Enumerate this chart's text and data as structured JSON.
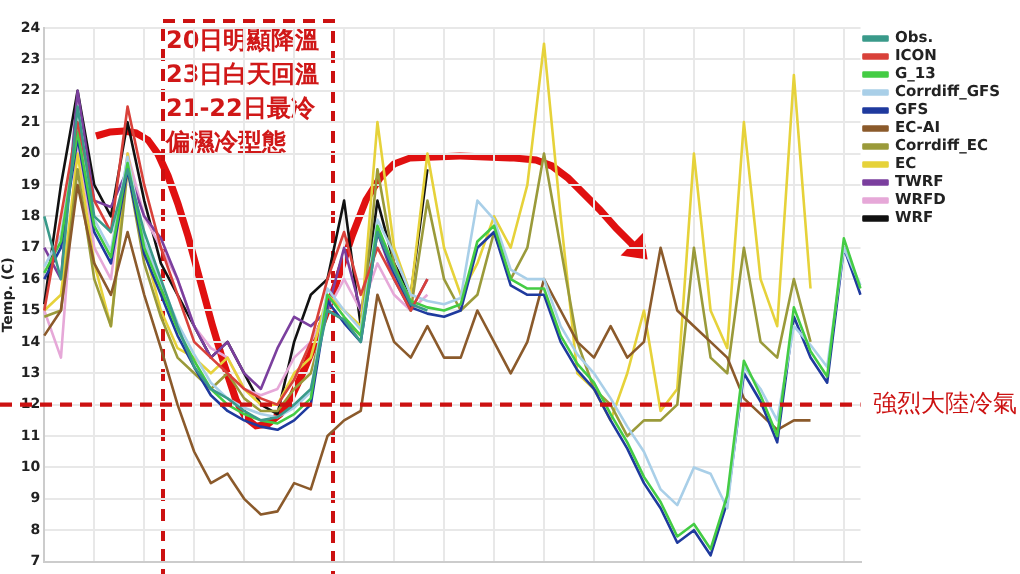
{
  "chart_data": {
    "type": "line",
    "ylabel": "Temp. (C)",
    "categories": [
      null,
      null,
      null,
      null,
      null,
      null,
      null,
      null,
      null,
      null,
      null,
      null,
      null,
      null,
      null,
      null,
      null,
      null,
      null,
      null,
      null,
      null,
      null,
      null,
      null,
      null,
      null,
      null,
      null,
      null,
      null,
      null,
      null,
      null,
      null,
      null,
      null,
      null,
      null,
      null,
      null,
      null,
      null,
      null,
      null,
      null,
      null,
      null,
      null,
      null
    ],
    "ylim": [
      7,
      24
    ],
    "yticks": [
      7,
      8,
      9,
      10,
      11,
      12,
      13,
      14,
      15,
      16,
      17,
      18,
      19,
      20,
      21,
      22,
      23,
      24
    ],
    "grid": true,
    "legend": "top right",
    "marker": "none",
    "line_style": "solid",
    "ref_lines": [
      {
        "axis": "y",
        "value": 12,
        "label": "強烈大陸冷氣",
        "color": "#cc1111",
        "line_style": "dashed"
      }
    ],
    "annotations": [
      "20日明顯降溫",
      "23日白天回溫",
      "21-22日最冷",
      "偏濕冷型態"
    ],
    "series": [
      {
        "name": "Obs.",
        "color": "#3a9a8a",
        "values": [
          18,
          16,
          21.5,
          18,
          17.5,
          19.5,
          17.5,
          16,
          14.5,
          13.2,
          12.5,
          12.2,
          11.8,
          11.5,
          11.6,
          12,
          12.5,
          15,
          14.7,
          14,
          17.5,
          16.3,
          15.2,
          15,
          null,
          null,
          null,
          null,
          null,
          null,
          null,
          null,
          null,
          null,
          null,
          null,
          null,
          null,
          null,
          null,
          null,
          null,
          null,
          null,
          null,
          null,
          null,
          null,
          null,
          null
        ]
      },
      {
        "name": "ICON",
        "color": "#d9413a",
        "values": [
          15,
          18,
          21,
          18.5,
          17.5,
          21.5,
          19,
          17,
          15.5,
          14,
          13.5,
          13,
          12.5,
          12.2,
          12,
          12.8,
          14,
          16,
          17.5,
          15.5,
          17,
          16,
          15,
          16,
          null,
          null,
          null,
          null,
          null,
          null,
          null,
          null,
          null,
          null,
          null,
          null,
          null,
          null,
          null,
          null,
          null,
          null,
          null,
          null,
          null,
          null,
          null,
          null,
          null,
          null
        ]
      },
      {
        "name": "G_13",
        "color": "#44cc44",
        "values": [
          16.2,
          17.2,
          20.7,
          17.7,
          16.7,
          19.7,
          17,
          15.7,
          14.4,
          13.4,
          12.5,
          12,
          11.7,
          11.5,
          11.4,
          11.7,
          12.2,
          15.5,
          14.8,
          14.2,
          17.7,
          16.4,
          15.3,
          15.1,
          15,
          15.2,
          17.2,
          17.7,
          16,
          15.7,
          15.7,
          14.2,
          13.3,
          12.7,
          11.7,
          10.8,
          9.7,
          8.9,
          7.8,
          8.2,
          7.4,
          9.1,
          13.4,
          12.3,
          11,
          15.1,
          13.7,
          12.9,
          17.3,
          15.7
        ]
      },
      {
        "name": "Corrdiff_GFS",
        "color": "#a9cfe8",
        "values": [
          16.4,
          17.4,
          20.8,
          17.9,
          16.9,
          19.9,
          17.2,
          15.9,
          14.6,
          13.6,
          12.7,
          12.2,
          11.9,
          11.7,
          11.6,
          11.9,
          12.4,
          15.7,
          15,
          14.4,
          17.9,
          16.8,
          15.5,
          15.3,
          15.2,
          15.4,
          18.5,
          17.9,
          16.3,
          16,
          16,
          14.5,
          13.6,
          13,
          12.2,
          11.3,
          10.5,
          9.3,
          8.8,
          10,
          9.8,
          8.7,
          13.2,
          12.5,
          11.5,
          14.5,
          13.9,
          13.2,
          17,
          15.8
        ]
      },
      {
        "name": "GFS",
        "color": "#1f3a9e",
        "values": [
          16,
          17,
          20.5,
          17.5,
          16.5,
          19.5,
          16.8,
          15.5,
          14.2,
          13.2,
          12.3,
          11.8,
          11.5,
          11.3,
          11.2,
          11.5,
          12,
          15.3,
          14.6,
          14,
          17.5,
          16.2,
          15.1,
          14.9,
          14.8,
          15,
          17,
          17.5,
          15.8,
          15.5,
          15.5,
          14,
          13.1,
          12.5,
          11.5,
          10.6,
          9.5,
          8.7,
          7.6,
          8,
          7.2,
          8.9,
          13,
          12.1,
          10.8,
          14.8,
          13.5,
          12.7,
          17,
          15.5
        ]
      },
      {
        "name": "EC-AI",
        "color": "#8b5a2b",
        "values": [
          14.2,
          15,
          19,
          16.5,
          15.5,
          17.5,
          15.5,
          13.8,
          12,
          10.5,
          9.5,
          9.8,
          9,
          8.5,
          8.6,
          9.5,
          9.3,
          11,
          11.5,
          11.8,
          15.5,
          14,
          13.5,
          14.5,
          13.5,
          13.5,
          15,
          14,
          13,
          14,
          16,
          15,
          14,
          13.5,
          14.5,
          13.5,
          14,
          17,
          15,
          14.5,
          14,
          13.5,
          12.2,
          11.7,
          11.2,
          11.5,
          11.5,
          null,
          null,
          null
        ]
      },
      {
        "name": "Corrdiff_EC",
        "color": "#9a9a3a",
        "values": [
          14.8,
          15,
          19.5,
          16,
          14.5,
          19.5,
          16.5,
          14.8,
          13.5,
          13,
          12.5,
          13,
          12.2,
          11.8,
          11.8,
          12.5,
          13,
          15,
          14.7,
          14.2,
          19.5,
          16.5,
          15,
          18.5,
          16,
          15,
          15.5,
          17.5,
          16,
          17,
          20,
          17,
          14,
          12.5,
          12,
          11,
          11.5,
          11.5,
          12,
          17,
          13.5,
          13,
          17,
          14,
          13.5,
          16,
          14,
          null,
          null,
          null
        ]
      },
      {
        "name": "EC",
        "color": "#e6d23a",
        "values": [
          15,
          15.5,
          20,
          16.5,
          14.5,
          20,
          17,
          15,
          13.8,
          13.5,
          13,
          13.5,
          12.5,
          12,
          12,
          13,
          13.5,
          15.5,
          15,
          14.5,
          21,
          17,
          15.5,
          20,
          17,
          15.5,
          16.5,
          18,
          17,
          19,
          23.5,
          18,
          13,
          12.5,
          11.5,
          13,
          15,
          11.8,
          12.5,
          20,
          15,
          13.8,
          21,
          16,
          14.5,
          22.5,
          15.7,
          null,
          null,
          null
        ]
      },
      {
        "name": "TWRF",
        "color": "#7b3f9e",
        "values": [
          17,
          16,
          22,
          18.5,
          18.3,
          19.5,
          18,
          17.3,
          16,
          14.5,
          13.5,
          14,
          13,
          12.5,
          13.8,
          14.8,
          14.5,
          15,
          17,
          15,
          17.5,
          16,
          15,
          16,
          null,
          null,
          null,
          null,
          null,
          null,
          null,
          null,
          null,
          null,
          null,
          null,
          null,
          null,
          null,
          null,
          null,
          null,
          null,
          null,
          null,
          null,
          null,
          null,
          null,
          null
        ]
      },
      {
        "name": "WRFD",
        "color": "#e6a8d8",
        "values": [
          15,
          13.5,
          20.5,
          17,
          16,
          20,
          18,
          17,
          16,
          14.5,
          13.8,
          13.5,
          12.5,
          12.3,
          12.5,
          13.5,
          14,
          15,
          16,
          15,
          16.5,
          15.5,
          15,
          15.5,
          null,
          null,
          null,
          null,
          null,
          null,
          null,
          null,
          null,
          null,
          null,
          null,
          null,
          null,
          null,
          null,
          null,
          null,
          null,
          null,
          null,
          null,
          null,
          null,
          null,
          null
        ]
      },
      {
        "name": "WRF",
        "color": "#111111",
        "values": [
          15.2,
          19,
          22,
          19,
          18,
          21,
          18.5,
          16.5,
          15.5,
          14.5,
          13.5,
          14,
          13,
          12,
          11.7,
          14,
          15.5,
          16,
          18.5,
          14.5,
          18.5,
          16.5,
          15.5,
          19.5,
          null,
          null,
          null,
          null,
          null,
          null,
          null,
          null,
          null,
          null,
          null,
          null,
          null,
          null,
          null,
          null,
          null,
          null,
          null,
          null,
          null,
          null,
          null,
          null,
          null,
          null
        ]
      }
    ]
  }
}
